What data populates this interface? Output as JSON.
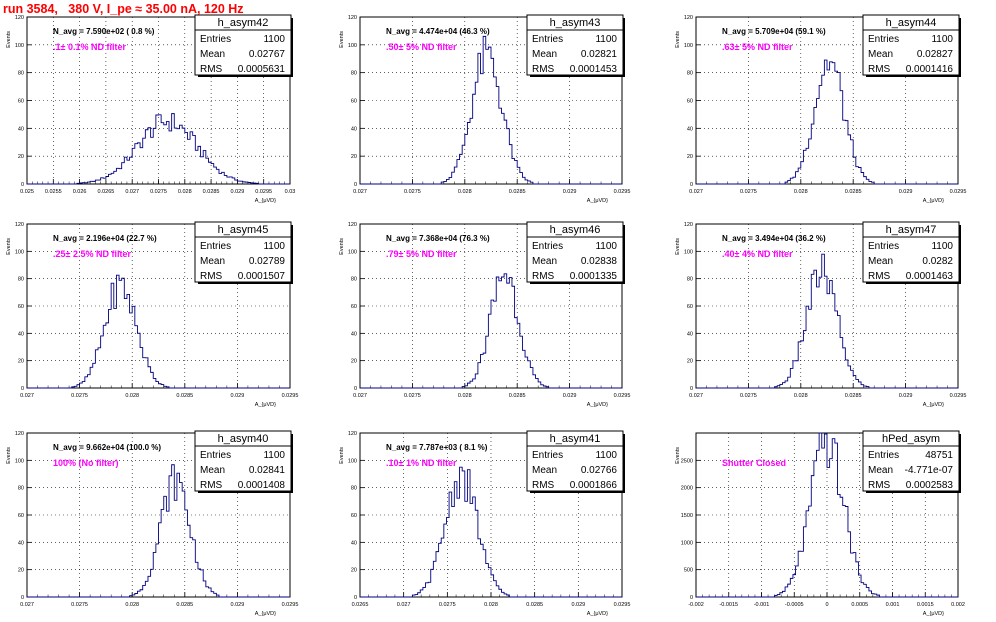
{
  "page": {
    "title": "run 3584,   380 V, I_pe ≈ 35.00 nA, 120 Hz"
  },
  "colors": {
    "histogram_line": "#000080",
    "filter_text": "#ff00ff",
    "title_text": "#ff0000",
    "grid": "#000000"
  },
  "chart_data": [
    {
      "type": "bar",
      "name": "h_asym42",
      "ylabel": "Events",
      "xlabel": "A_{μVD}",
      "xlim": [
        0.025,
        0.03
      ],
      "ylim": [
        0,
        120
      ],
      "xticks": [
        "0.025",
        "0.0255",
        "0.026",
        "0.0265",
        "0.027",
        "0.0275",
        "0.028",
        "0.0285",
        "0.029",
        "0.0295",
        "0.03"
      ],
      "yticks": [
        "0",
        "20",
        "40",
        "60",
        "80",
        "100",
        "120"
      ],
      "navg": "N_avg = 7.590e+02 ( 0.8 %)",
      "filter": ".1± 0.1% ND filter",
      "stats": {
        "entries": "1100",
        "mean": "0.02767",
        "rms": "0.0005631"
      },
      "mean": 0.02767,
      "rms": 0.0005631,
      "peak": 45
    },
    {
      "type": "bar",
      "name": "h_asym43",
      "ylabel": "Events",
      "xlabel": "A_{μVD}",
      "xlim": [
        0.027,
        0.0295
      ],
      "ylim": [
        0,
        120
      ],
      "xticks": [
        "0.027",
        "0.0275",
        "0.028",
        "0.0285",
        "0.029",
        "0.0295"
      ],
      "yticks": [
        "0",
        "20",
        "40",
        "60",
        "80",
        "100",
        "120"
      ],
      "navg": "N_avg = 4.474e+04 (46.3 %)",
      "filter": ".50± 5% ND filter",
      "stats": {
        "entries": "1100",
        "mean": "0.02821",
        "rms": "0.0001453"
      },
      "mean": 0.02821,
      "rms": 0.0001453,
      "peak": 92
    },
    {
      "type": "bar",
      "name": "h_asym44",
      "ylabel": "Events",
      "xlabel": "A_{μVD}",
      "xlim": [
        0.027,
        0.0295
      ],
      "ylim": [
        0,
        120
      ],
      "xticks": [
        "0.027",
        "0.0275",
        "0.028",
        "0.0285",
        "0.029",
        "0.0295"
      ],
      "yticks": [
        "0",
        "20",
        "40",
        "60",
        "80",
        "100",
        "120"
      ],
      "navg": "N_avg = 5.709e+04 (59.1 %)",
      "filter": ".63± 5% ND filter",
      "stats": {
        "entries": "1100",
        "mean": "0.02827",
        "rms": "0.0001416"
      },
      "mean": 0.02827,
      "rms": 0.0001416,
      "peak": 88
    },
    {
      "type": "bar",
      "name": "h_asym45",
      "ylabel": "Events",
      "xlabel": "A_{μVD}",
      "xlim": [
        0.027,
        0.0295
      ],
      "ylim": [
        0,
        120
      ],
      "xticks": [
        "0.027",
        "0.0275",
        "0.028",
        "0.0285",
        "0.029",
        "0.0295"
      ],
      "yticks": [
        "0",
        "20",
        "40",
        "60",
        "80",
        "100",
        "120"
      ],
      "navg": "N_avg = 2.196e+04 (22.7 %)",
      "filter": ".25± 2.5% ND filter",
      "stats": {
        "entries": "1100",
        "mean": "0.02789",
        "rms": "0.0001507"
      },
      "mean": 0.02789,
      "rms": 0.0001507,
      "peak": 75
    },
    {
      "type": "bar",
      "name": "h_asym46",
      "ylabel": "Events",
      "xlabel": "A_{μVD}",
      "xlim": [
        0.027,
        0.0295
      ],
      "ylim": [
        0,
        120
      ],
      "xticks": [
        "0.027",
        "0.0275",
        "0.028",
        "0.0285",
        "0.029",
        "0.0295"
      ],
      "yticks": [
        "0",
        "20",
        "40",
        "60",
        "80",
        "100",
        "120"
      ],
      "navg": "N_avg = 7.368e+04 (76.3 %)",
      "filter": ".79± 5% ND filter",
      "stats": {
        "entries": "1100",
        "mean": "0.02838",
        "rms": "0.0001335"
      },
      "mean": 0.02838,
      "rms": 0.0001335,
      "peak": 85
    },
    {
      "type": "bar",
      "name": "h_asym47",
      "ylabel": "Events",
      "xlabel": "A_{μVD}",
      "xlim": [
        0.027,
        0.0295
      ],
      "ylim": [
        0,
        120
      ],
      "xticks": [
        "0.027",
        "0.0275",
        "0.028",
        "0.0285",
        "0.029",
        "0.0295"
      ],
      "yticks": [
        "0",
        "20",
        "40",
        "60",
        "80",
        "100",
        "120"
      ],
      "navg": "N_avg = 3.494e+04 (36.2 %)",
      "filter": ".40± 4% ND filter",
      "stats": {
        "entries": "1100",
        "mean": "0.0282",
        "rms": "0.0001463"
      },
      "mean": 0.0282,
      "rms": 0.0001463,
      "peak": 85
    },
    {
      "type": "bar",
      "name": "h_asym40",
      "ylabel": "Events",
      "xlabel": "A_{μVD}",
      "xlim": [
        0.027,
        0.0295
      ],
      "ylim": [
        0,
        120
      ],
      "xticks": [
        "0.027",
        "0.0275",
        "0.028",
        "0.0285",
        "0.029",
        "0.0295"
      ],
      "yticks": [
        "0",
        "20",
        "40",
        "60",
        "80",
        "100",
        "120"
      ],
      "navg": "N_avg = 9.662e+04 (100.0 %)",
      "filter": "100% (No filter)",
      "stats": {
        "entries": "1100",
        "mean": "0.02841",
        "rms": "0.0001408"
      },
      "mean": 0.02841,
      "rms": 0.0001408,
      "peak": 85
    },
    {
      "type": "bar",
      "name": "h_asym41",
      "ylabel": "Events",
      "xlabel": "A_{μVD}",
      "xlim": [
        0.0265,
        0.0295
      ],
      "ylim": [
        0,
        120
      ],
      "xticks": [
        "0.0265",
        "0.027",
        "0.0275",
        "0.028",
        "0.0285",
        "0.029",
        "0.0295"
      ],
      "yticks": [
        "0",
        "20",
        "40",
        "60",
        "80",
        "100",
        "120"
      ],
      "navg": "N_avg = 7.787e+03 ( 8.1 %)",
      "filter": ".10± 1% ND filter",
      "stats": {
        "entries": "1100",
        "mean": "0.02766",
        "rms": "0.0001866"
      },
      "mean": 0.02766,
      "rms": 0.0001866,
      "peak": 88
    },
    {
      "type": "bar",
      "name": "hPed_asym",
      "ylabel": "Events",
      "xlabel": "A_{μVD}",
      "xlim": [
        -0.002,
        0.002
      ],
      "ylim": [
        0,
        3000
      ],
      "xticks": [
        "-0.002",
        "-0.0015",
        "-0.001",
        "-0.0005",
        "0",
        "0.0005",
        "0.001",
        "0.0015",
        "0.002"
      ],
      "yticks": [
        "0",
        "500",
        "1000",
        "1500",
        "2000",
        "2500"
      ],
      "navg": "",
      "filter": "Shutter Closed",
      "stats": {
        "entries": "48751",
        "mean": "-4.771e-07",
        "rms": "0.0002583"
      },
      "mean": -4.771e-07,
      "rms": 0.0002583,
      "peak": 2800
    }
  ],
  "stat_labels": {
    "entries": "Entries",
    "mean": "Mean",
    "rms": "RMS"
  }
}
